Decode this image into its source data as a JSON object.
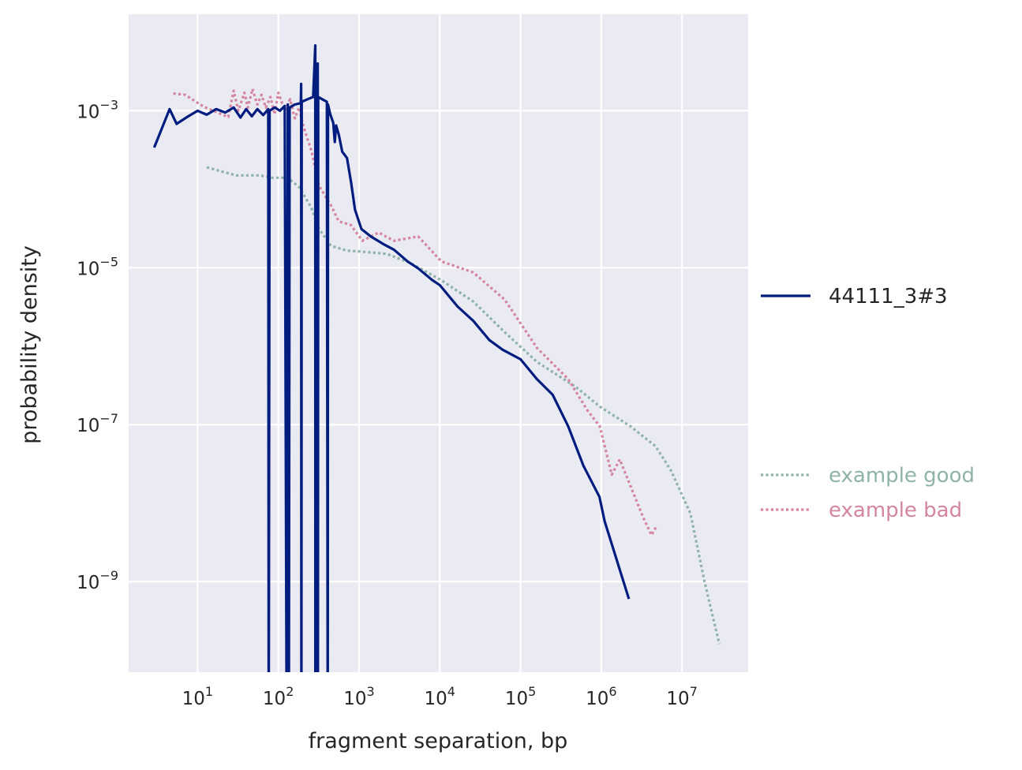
{
  "chart_data": {
    "type": "line",
    "xlabel": "fragment separation, bp",
    "ylabel": "probability density",
    "xscale": "log",
    "yscale": "log",
    "xlim": [
      1.4,
      66000000
    ],
    "ylim": [
      7e-11,
      0.017
    ],
    "grid": true,
    "background": "#eaeaf2",
    "legend_placement": "right-outside",
    "x_ticks": [
      {
        "value": 10,
        "base": "10",
        "exp": "1"
      },
      {
        "value": 100,
        "base": "10",
        "exp": "2"
      },
      {
        "value": 1000,
        "base": "10",
        "exp": "3"
      },
      {
        "value": 10000,
        "base": "10",
        "exp": "4"
      },
      {
        "value": 100000,
        "base": "10",
        "exp": "5"
      },
      {
        "value": 1000000,
        "base": "10",
        "exp": "6"
      },
      {
        "value": 10000000,
        "base": "10",
        "exp": "7"
      }
    ],
    "y_ticks": [
      {
        "value": 0.001,
        "base": "10",
        "exp": "−3"
      },
      {
        "value": 1e-05,
        "base": "10",
        "exp": "−5"
      },
      {
        "value": 1e-07,
        "base": "10",
        "exp": "−7"
      },
      {
        "value": 1e-09,
        "base": "10",
        "exp": "−9"
      }
    ],
    "series": [
      {
        "name": "44111_3#3",
        "color": "#001c7f",
        "style": "solid",
        "legend_group": "top",
        "points": [
          [
            2.9,
            0.00034
          ],
          [
            4.5,
            0.00105
          ],
          [
            5.5,
            0.00068
          ],
          [
            7.4,
            0.00083
          ],
          [
            10,
            0.001
          ],
          [
            13,
            0.00089
          ],
          [
            17,
            0.00105
          ],
          [
            22,
            0.00095
          ],
          [
            28,
            0.0011
          ],
          [
            34,
            0.00082
          ],
          [
            40,
            0.00105
          ],
          [
            47,
            0.00085
          ],
          [
            55,
            0.00105
          ],
          [
            65,
            0.00088
          ],
          [
            75,
            0.00105
          ],
          [
            76,
            0
          ],
          [
            78,
            0.001
          ],
          [
            90,
            0.0011
          ],
          [
            105,
            0.001
          ],
          [
            120,
            0.00115
          ],
          [
            127,
            0
          ],
          [
            131,
            0.0012
          ],
          [
            135,
            0
          ],
          [
            138,
            0.0011
          ],
          [
            160,
            0.0012
          ],
          [
            190,
            0.00125
          ],
          [
            192,
            0.0022
          ],
          [
            193,
            0
          ],
          [
            195,
            0.0013
          ],
          [
            230,
            0.0014
          ],
          [
            270,
            0.0015
          ],
          [
            287,
            0.0068
          ],
          [
            288,
            0
          ],
          [
            290,
            0.0015
          ],
          [
            308,
            0.004
          ],
          [
            309,
            0
          ],
          [
            312,
            0.0015
          ],
          [
            350,
            0.0014
          ],
          [
            400,
            0.0013
          ],
          [
            410,
            0
          ],
          [
            412,
            0.0012
          ],
          [
            440,
            0.0009
          ],
          [
            480,
            0.0007
          ],
          [
            500,
            0.0004
          ],
          [
            520,
            0.00065
          ],
          [
            560,
            0.0005
          ],
          [
            620,
            0.0003
          ],
          [
            710,
            0.00025
          ],
          [
            800,
            0.00012
          ],
          [
            890,
            5.5e-05
          ],
          [
            1070,
            3.1e-05
          ],
          [
            1400,
            2.5e-05
          ],
          [
            2000,
            2e-05
          ],
          [
            2700,
            1.7e-05
          ],
          [
            4000,
            1.2e-05
          ],
          [
            5400,
            9.8e-06
          ],
          [
            8000,
            7e-06
          ],
          [
            10000,
            6e-06
          ],
          [
            16600,
            3.2e-06
          ],
          [
            26000,
            2.1e-06
          ],
          [
            41000,
            1.2e-06
          ],
          [
            60000,
            9e-07
          ],
          [
            100000,
            6.8e-07
          ],
          [
            160000,
            3.8e-07
          ],
          [
            250000,
            2.4e-07
          ],
          [
            390000,
            9.5e-08
          ],
          [
            600000,
            3e-08
          ],
          [
            950000,
            1.2e-08
          ],
          [
            1100000,
            5.9e-09
          ],
          [
            2200000,
            6e-10
          ]
        ]
      },
      {
        "name": "example good",
        "color": "#8fb3aa",
        "style": "dotted",
        "legend_group": "bottom",
        "points": [
          [
            13,
            0.00019
          ],
          [
            30,
            0.00015
          ],
          [
            59,
            0.00015
          ],
          [
            83,
            0.00014
          ],
          [
            131,
            0.00014
          ],
          [
            183,
            0.000105
          ],
          [
            257,
            5.8e-05
          ],
          [
            320,
            3.1e-05
          ],
          [
            450,
            1.9e-05
          ],
          [
            710,
            1.65e-05
          ],
          [
            1100,
            1.6e-05
          ],
          [
            2200,
            1.5e-05
          ],
          [
            4300,
            1.15e-05
          ],
          [
            10500,
            6.9e-06
          ],
          [
            26000,
            3.7e-06
          ],
          [
            64000,
            1.5e-06
          ],
          [
            160000,
            6.3e-07
          ],
          [
            490000,
            3e-07
          ],
          [
            960000,
            1.7e-07
          ],
          [
            2300000,
            9.5e-08
          ],
          [
            4700000,
            5.3e-08
          ],
          [
            7300000,
            2.6e-08
          ],
          [
            12700000,
            7.4e-09
          ],
          [
            19000000,
            1e-09
          ],
          [
            29000000,
            1.6e-10
          ]
        ]
      },
      {
        "name": "example bad",
        "color": "#d4859f",
        "style": "dotted",
        "legend_group": "bottom",
        "points": [
          [
            5,
            0.00166
          ],
          [
            7,
            0.0016
          ],
          [
            12,
            0.00112
          ],
          [
            24,
            0.00083
          ],
          [
            28,
            0.0018
          ],
          [
            32,
            0.001
          ],
          [
            38,
            0.0017
          ],
          [
            42,
            0.0011
          ],
          [
            48,
            0.0019
          ],
          [
            55,
            0.0012
          ],
          [
            62,
            0.0016
          ],
          [
            70,
            0.0011
          ],
          [
            80,
            0.0015
          ],
          [
            90,
            0.0009
          ],
          [
            100,
            0.0017
          ],
          [
            120,
            0.001
          ],
          [
            140,
            0.0014
          ],
          [
            160,
            0.0008
          ],
          [
            180,
            0.0011
          ],
          [
            205,
            0.00063
          ],
          [
            257,
            0.00031
          ],
          [
            320,
            0.00011
          ],
          [
            450,
            6.2e-05
          ],
          [
            560,
            3.9e-05
          ],
          [
            790,
            3.5e-05
          ],
          [
            1100,
            2.2e-05
          ],
          [
            1750,
            2.8e-05
          ],
          [
            2700,
            2.2e-05
          ],
          [
            5400,
            2.5e-05
          ],
          [
            10500,
            1.2e-05
          ],
          [
            26000,
            8.7e-06
          ],
          [
            64000,
            3.9e-06
          ],
          [
            160000,
            9.5e-07
          ],
          [
            390000,
            3.8e-07
          ],
          [
            680000,
            1.5e-07
          ],
          [
            960000,
            9.5e-08
          ],
          [
            1350000,
            2.3e-08
          ],
          [
            1700000,
            3.6e-08
          ],
          [
            2300000,
            1.65e-08
          ],
          [
            3300000,
            6.6e-09
          ],
          [
            4200000,
            3.9e-09
          ],
          [
            4900000,
            5.2e-09
          ]
        ]
      }
    ]
  }
}
